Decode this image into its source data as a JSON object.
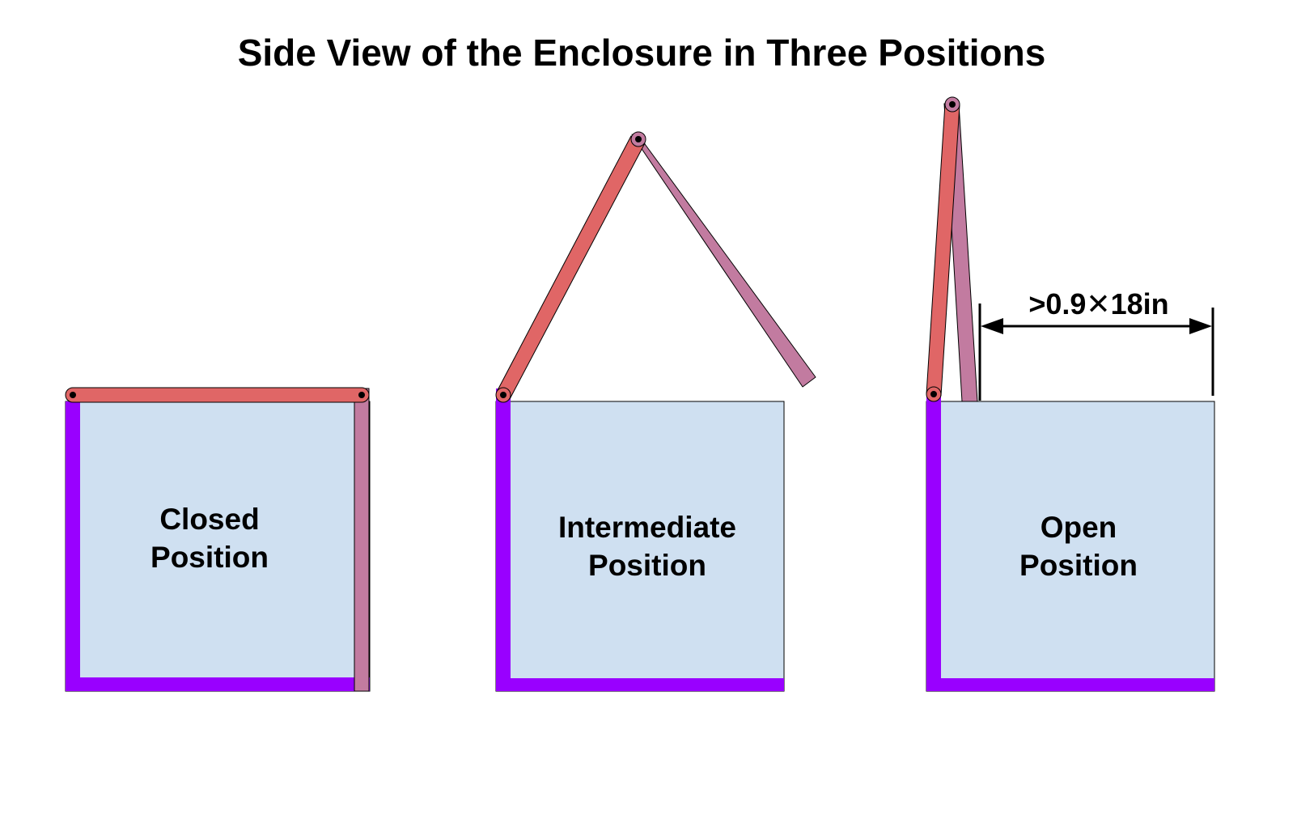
{
  "title": "Side View of the Enclosure in Three Positions",
  "colors": {
    "box_fill": "#cfe0f1",
    "frame": "#9900ff",
    "lid_front": "#e06666",
    "lid_back": "#c27ba0",
    "line": "#000000"
  },
  "positions": [
    {
      "label_line1": "Closed",
      "label_line2": "Position"
    },
    {
      "label_line1": "Intermediate",
      "label_line2": "Position"
    },
    {
      "label_line1": "Open",
      "label_line2": "Position"
    }
  ],
  "dimension": {
    "label": ">0.9✕18in"
  }
}
